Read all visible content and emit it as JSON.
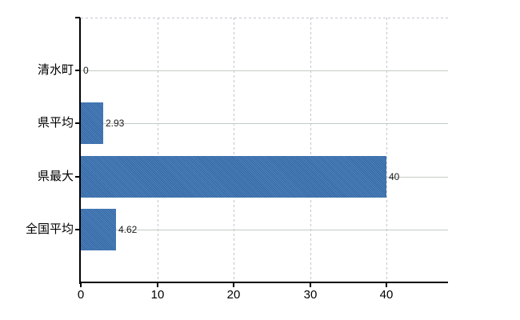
{
  "chart_data": {
    "type": "bar",
    "orientation": "horizontal",
    "title": "",
    "xlabel": "",
    "ylabel": "",
    "categories": [
      "清水町",
      "県平均",
      "県最大",
      "全国平均"
    ],
    "values": [
      0,
      2.93,
      40,
      4.62
    ],
    "value_labels": [
      "0",
      "2.93",
      "40",
      "4.62"
    ],
    "xticks": [
      0,
      10,
      20,
      30,
      40
    ],
    "xtick_labels": [
      "0",
      "10",
      "20",
      "30",
      "40"
    ],
    "xlim": [
      0,
      48
    ],
    "legend_position": "none",
    "grid": {
      "vertical": "dashed",
      "horizontal": "solid",
      "top_border": "dashed"
    },
    "colors": {
      "bar_dither_dark": "#35689f",
      "bar_dither_light": "#4e82c1",
      "gridline_solid": "#c3ccc3",
      "gridline_dashed": "#c7c3d0",
      "axis": "#000000",
      "tick": "#000000",
      "category_text": "#000000",
      "value_text": "#1b1b1b",
      "axis_label_text": "#000000",
      "background": "#ffffff"
    }
  }
}
